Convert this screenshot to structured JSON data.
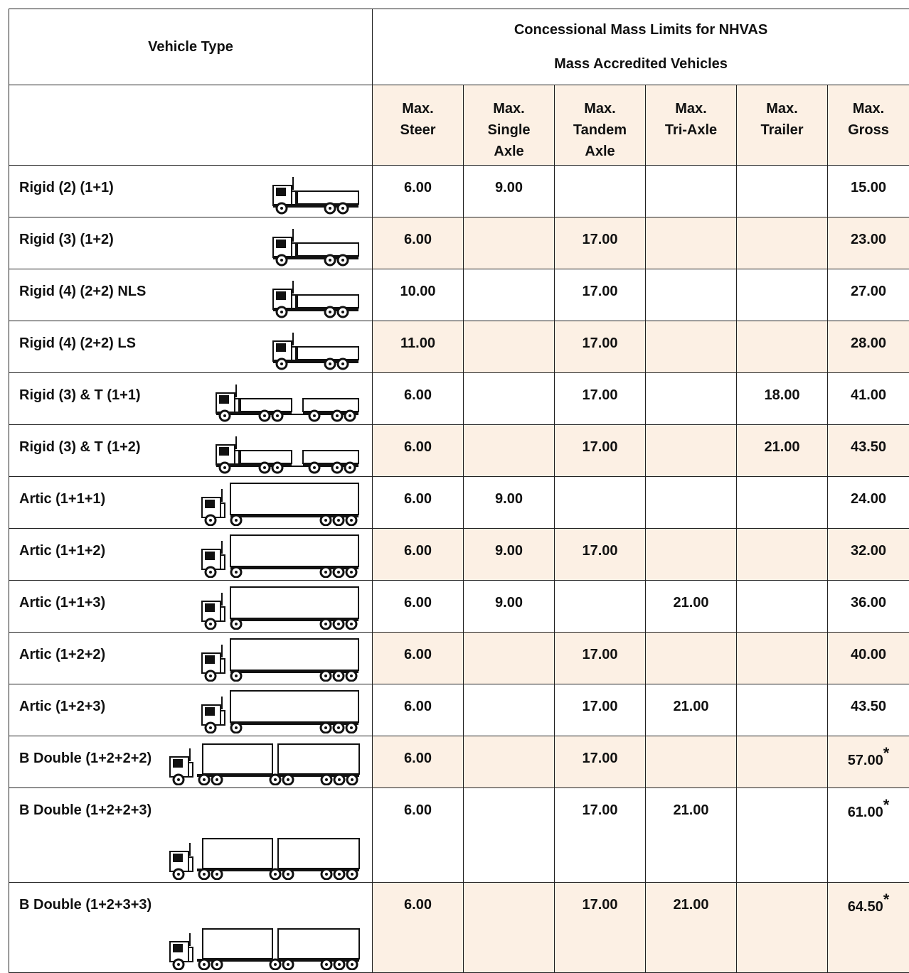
{
  "header": {
    "vehicle_type": "Vehicle Type",
    "title_line1": "Concessional Mass Limits for NHVAS",
    "title_line2": "Mass Accredited Vehicles",
    "columns": [
      [
        "Max.",
        "Steer"
      ],
      [
        "Max.",
        "Single",
        "Axle"
      ],
      [
        "Max.",
        "Tandem",
        "Axle"
      ],
      [
        "Max.",
        "Tri-Axle"
      ],
      [
        "Max.",
        "Trailer"
      ],
      [
        "Max.",
        "Gross"
      ]
    ]
  },
  "rows": [
    {
      "name": "Rigid (2) (1+1)",
      "cells": [
        "6.00",
        "9.00",
        null,
        null,
        null,
        "15.00"
      ]
    },
    {
      "name": "Rigid (3) (1+2)",
      "cells": [
        "6.00",
        null,
        "17.00",
        null,
        null,
        "23.00"
      ]
    },
    {
      "name": "Rigid (4) (2+2) NLS",
      "cells": [
        "10.00",
        null,
        "17.00",
        null,
        null,
        "27.00"
      ]
    },
    {
      "name": "Rigid (4) (2+2) LS",
      "cells": [
        "11.00",
        null,
        "17.00",
        null,
        null,
        "28.00"
      ]
    },
    {
      "name": "Rigid (3) & T (1+1)",
      "cells": [
        "6.00",
        null,
        "17.00",
        null,
        "18.00",
        "41.00"
      ]
    },
    {
      "name": "Rigid (3) & T (1+2)",
      "cells": [
        "6.00",
        null,
        "17.00",
        null,
        "21.00",
        "43.50"
      ]
    },
    {
      "name": "Artic (1+1+1)",
      "cells": [
        "6.00",
        "9.00",
        null,
        null,
        null,
        "24.00"
      ]
    },
    {
      "name": "Artic (1+1+2)",
      "cells": [
        "6.00",
        "9.00",
        "17.00",
        null,
        null,
        "32.00"
      ]
    },
    {
      "name": "Artic (1+1+3)",
      "cells": [
        "6.00",
        "9.00",
        null,
        "21.00",
        null,
        "36.00"
      ]
    },
    {
      "name": "Artic (1+2+2)",
      "cells": [
        "6.00",
        null,
        "17.00",
        null,
        null,
        "40.00"
      ]
    },
    {
      "name": "Artic (1+2+3)",
      "cells": [
        "6.00",
        null,
        "17.00",
        "21.00",
        null,
        "43.50"
      ]
    },
    {
      "name": "B Double (1+2+2+2)",
      "cells": [
        "6.00",
        null,
        "17.00",
        null,
        null,
        "57.00"
      ],
      "footnote": "*"
    },
    {
      "name": "B Double (1+2+2+3)",
      "cells": [
        "6.00",
        null,
        "17.00",
        "21.00",
        null,
        "61.00"
      ],
      "footnote": "*"
    },
    {
      "name": "B Double (1+2+3+3)",
      "cells": [
        "6.00",
        null,
        "17.00",
        "21.00",
        null,
        "64.50"
      ],
      "footnote": "*"
    }
  ]
}
